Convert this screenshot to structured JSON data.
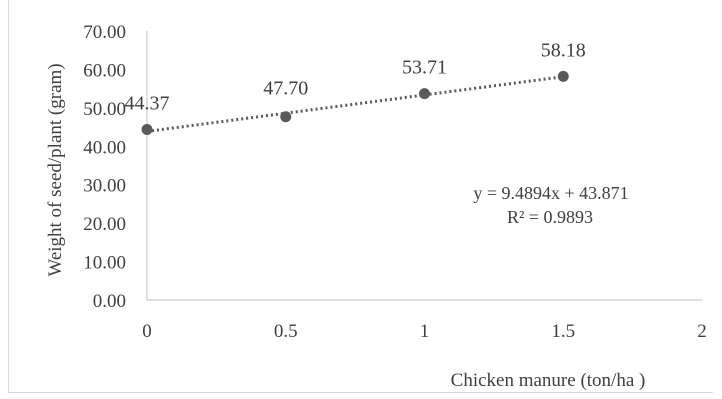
{
  "chart_data": {
    "type": "scatter",
    "title": "",
    "xlabel": "Chicken manure (ton/ha )",
    "ylabel": "Weight of seed/plant  (gram)",
    "xlim": [
      0,
      2
    ],
    "ylim": [
      0,
      70
    ],
    "x_ticks": [
      "0",
      "0.5",
      "1",
      "1.5",
      "2"
    ],
    "y_ticks": [
      "0.00",
      "10.00",
      "20.00",
      "30.00",
      "40.00",
      "50.00",
      "60.00",
      "70.00"
    ],
    "series": [
      {
        "x": [
          0,
          0.5,
          1,
          1.5
        ],
        "y": [
          44.37,
          47.7,
          53.71,
          58.18
        ],
        "labels": [
          "44.37",
          "47.70",
          "53.71",
          "58.18"
        ],
        "color": "#595959"
      }
    ],
    "trendline": {
      "type": "linear",
      "slope": 9.4894,
      "intercept": 43.871,
      "style": "dotted",
      "color": "#595959",
      "equation": "y = 9.4894x + 43.871",
      "r_squared": "R² = 0.9893"
    },
    "grid": false,
    "legend": "none"
  }
}
